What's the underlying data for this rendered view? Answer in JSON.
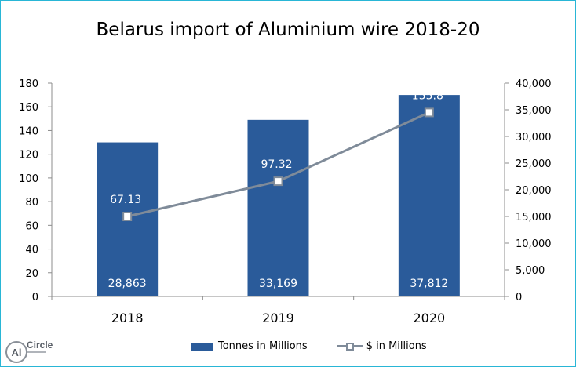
{
  "chart_data": {
    "type": "bar+line",
    "title": "Belarus import of Aluminium wire 2018-20",
    "categories": [
      "2018",
      "2019",
      "2020"
    ],
    "left_axis": {
      "ticks": [
        "0",
        "20",
        "40",
        "60",
        "80",
        "100",
        "120",
        "140",
        "160",
        "180"
      ],
      "ylim": [
        0,
        180
      ]
    },
    "right_axis": {
      "ticks": [
        "0",
        "5,000",
        "10,000",
        "15,000",
        "20,000",
        "25,000",
        "30,000",
        "35,000",
        "40,000"
      ],
      "ylim": [
        0,
        40000
      ]
    },
    "series": [
      {
        "name": "Tonnes in Millions",
        "type": "bar",
        "axis": "left",
        "values": [
          130,
          149,
          170
        ],
        "labels": [
          "28,863",
          "33,169",
          "37,812"
        ],
        "color": "#2a5b9a"
      },
      {
        "name": "$ in Millions",
        "type": "line",
        "axis": "right",
        "values": [
          15000,
          21600,
          34500
        ],
        "labels": [
          "67.13",
          "97.32",
          "155.8"
        ],
        "color": "#7f8b99"
      }
    ],
    "grid": false,
    "legend": "bottom"
  },
  "branding": {
    "logo_mark": "Al",
    "logo_text": "Circle"
  }
}
